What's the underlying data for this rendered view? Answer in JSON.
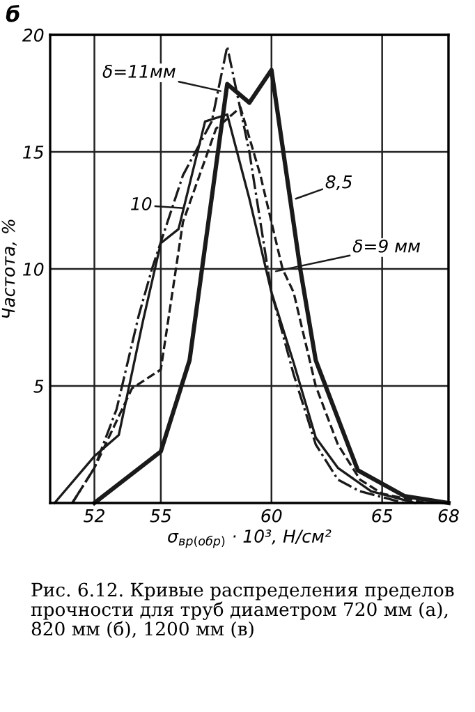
{
  "chart_data": {
    "type": "line",
    "xlabel": "σ$_{вр(обр)}$ · 10³, Н/см²",
    "ylabel": "Частота, %",
    "xlim": [
      50,
      68
    ],
    "xticks": [
      52,
      55,
      60,
      65,
      68
    ],
    "ylim": [
      0,
      20
    ],
    "yticks": [
      5,
      10,
      15,
      20
    ],
    "grid": true,
    "marker": "none",
    "series": [
      {
        "color": "#1a1a1a",
        "line_style": "solid",
        "x": [
          52,
          55,
          56.3,
          58.0,
          59.0,
          60.0,
          61.3,
          62.0,
          63.9,
          66,
          68
        ],
        "values": [
          0,
          2.2,
          6.1,
          17.9,
          17.1,
          18.5,
          10,
          6.1,
          1.4,
          0.3,
          0
        ]
      },
      {
        "color": "#1a1a1a",
        "line_style": "solid",
        "x": [
          50.2,
          52,
          53.1,
          54.2,
          55,
          55.8,
          57.0,
          58.0,
          59.0,
          60.0,
          61.0,
          62.0,
          63.0,
          64.5,
          66.5
        ],
        "values": [
          0,
          2.0,
          2.9,
          7.8,
          11.1,
          11.7,
          16.3,
          16.6,
          13.0,
          9.0,
          6.0,
          2.8,
          1.5,
          0.5,
          0
        ]
      },
      {
        "color": "#1a1a1a",
        "line_style": "dashed",
        "x": [
          51,
          52,
          53.7,
          55,
          56,
          57.5,
          58.6,
          59.5,
          60.5,
          61,
          62,
          63,
          64,
          65,
          67
        ],
        "values": [
          0,
          1.5,
          4.9,
          5.7,
          12,
          16,
          16.9,
          14,
          10,
          9,
          5,
          2.5,
          1,
          0.4,
          0
        ]
      },
      {
        "color": "#1a1a1a",
        "line_style": "dashdot",
        "x": [
          51,
          52,
          53,
          54,
          54.6,
          56,
          57.3,
          58.0,
          59,
          60,
          61,
          62,
          63,
          64,
          66
        ],
        "values": [
          0,
          1.5,
          4,
          8,
          10,
          14,
          16.3,
          19.5,
          15,
          9,
          5.5,
          2.5,
          1,
          0.5,
          0
        ]
      }
    ],
    "annotations": [
      "б",
      {
        "text": "δ=11мм",
        "x": 57.7,
        "y": 17.6
      },
      {
        "text": "10",
        "x": 56.0,
        "y": 12.6
      },
      {
        "text": "8,5",
        "x": 61.1,
        "y": 13.0
      },
      {
        "text": "δ=9 мм",
        "x": 60.2,
        "y": 9.9
      },
      "Рис. 6.12. Кривые распределения пределов прочности для труб диаметром 720 мм (а), 820 мм (б), 1200 мм (в)"
    ]
  }
}
